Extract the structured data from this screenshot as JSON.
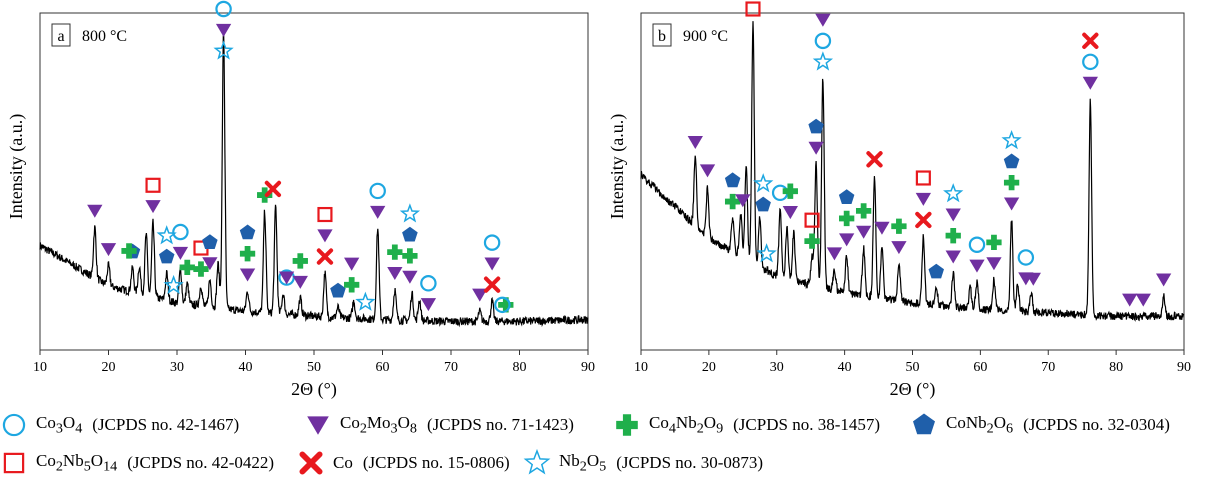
{
  "figure": {
    "legend": [
      {
        "symbol": "circle",
        "color": "#1EA7E1",
        "formula_html": "Co<sub>3</sub>O<sub>4</sub>",
        "formula": "Co3O4",
        "ref": "(JCPDS no. 42-1467)"
      },
      {
        "symbol": "triangle",
        "color": "#7030A0",
        "formula_html": "Co<sub>2</sub>Mo<sub>3</sub>O<sub>8</sub>",
        "formula": "Co2Mo3O8",
        "ref": "(JCPDS no. 71-1423)"
      },
      {
        "symbol": "plus",
        "color": "#1FAF4B",
        "formula_html": "Co<sub>4</sub>Nb<sub>2</sub>O<sub>9</sub>",
        "formula": "Co4Nb2O9",
        "ref": "(JCPDS no. 38-1457)"
      },
      {
        "symbol": "pentagon",
        "color": "#1F5FAA",
        "formula_html": "CoNb<sub>2</sub>O<sub>6</sub>",
        "formula": "CoNb2O6",
        "ref": "(JCPDS no. 32-0304)"
      },
      {
        "symbol": "square",
        "color": "#E8191E",
        "formula_html": "Co<sub>2</sub>Nb<sub>5</sub>O<sub>14</sub>",
        "formula": "Co2Nb5O14",
        "ref": "(JCPDS no. 42-0422)"
      },
      {
        "symbol": "cross",
        "color": "#E8191E",
        "formula_html": "Co",
        "formula": "Co",
        "ref": "(JCPDS no. 15-0806)"
      },
      {
        "symbol": "star",
        "color": "#1EA7E1",
        "formula_html": "Nb<sub>2</sub>O<sub>5</sub>",
        "formula": "Nb2O5",
        "ref": "(JCPDS no. 30-0873)"
      }
    ]
  },
  "chart_data": [
    {
      "type": "line",
      "panel_label": "a",
      "temperature": "800 °C",
      "xlabel": "2Θ (°)",
      "ylabel": "Intensity (a.u.)",
      "xlim": [
        10,
        90
      ],
      "xticks": [
        10,
        20,
        30,
        40,
        50,
        60,
        70,
        80,
        90
      ],
      "ylim": [
        0,
        100
      ],
      "baseline": {
        "x": [
          10,
          20,
          30,
          40,
          50,
          60,
          70,
          80,
          90
        ],
        "y": [
          31,
          19,
          14,
          11.5,
          10,
          9,
          8.5,
          8.5,
          9
        ]
      },
      "peaks": [
        {
          "x": 18.0,
          "h": 15
        },
        {
          "x": 20.0,
          "h": 6
        },
        {
          "x": 23.5,
          "h": 7
        },
        {
          "x": 24.5,
          "h": 8
        },
        {
          "x": 25.5,
          "h": 18
        },
        {
          "x": 26.5,
          "h": 22
        },
        {
          "x": 28.5,
          "h": 8
        },
        {
          "x": 30.5,
          "h": 10
        },
        {
          "x": 31.5,
          "h": 6
        },
        {
          "x": 33.5,
          "h": 6
        },
        {
          "x": 34.8,
          "h": 8
        },
        {
          "x": 36.0,
          "h": 13
        },
        {
          "x": 36.8,
          "h": 82
        },
        {
          "x": 40.3,
          "h": 6
        },
        {
          "x": 42.8,
          "h": 30
        },
        {
          "x": 44.4,
          "h": 32
        },
        {
          "x": 45.5,
          "h": 6
        },
        {
          "x": 48.0,
          "h": 5
        },
        {
          "x": 51.6,
          "h": 13
        },
        {
          "x": 53.5,
          "h": 3
        },
        {
          "x": 55.8,
          "h": 5
        },
        {
          "x": 59.3,
          "h": 27
        },
        {
          "x": 61.8,
          "h": 9
        },
        {
          "x": 64.3,
          "h": 8
        },
        {
          "x": 65.4,
          "h": 6
        },
        {
          "x": 74.2,
          "h": 3
        },
        {
          "x": 76.0,
          "h": 6
        }
      ],
      "markers": [
        {
          "x": 18.0,
          "stack": [
            "triangle"
          ]
        },
        {
          "x": 20.0,
          "stack": [
            "triangle"
          ]
        },
        {
          "x": 23.5,
          "stack": [
            "pentagon"
          ]
        },
        {
          "x": 23.0,
          "stack": [
            "plus"
          ]
        },
        {
          "x": 26.5,
          "stack": [
            "square",
            "triangle"
          ]
        },
        {
          "x": 28.5,
          "stack": [
            "star",
            "pentagon"
          ]
        },
        {
          "x": 29.5,
          "stack": [
            "star"
          ]
        },
        {
          "x": 30.5,
          "stack": [
            "circle",
            "triangle"
          ]
        },
        {
          "x": 31.5,
          "stack": [
            "plus"
          ]
        },
        {
          "x": 33.5,
          "stack": [
            "square",
            "plus"
          ]
        },
        {
          "x": 34.8,
          "stack": [
            "pentagon",
            "triangle"
          ]
        },
        {
          "x": 36.8,
          "stack": [
            "circle",
            "triangle",
            "star"
          ]
        },
        {
          "x": 40.3,
          "stack": [
            "pentagon",
            "plus",
            "triangle"
          ]
        },
        {
          "x": 42.8,
          "stack": [
            "plus"
          ]
        },
        {
          "x": 44.0,
          "stack": [
            "cross"
          ]
        },
        {
          "x": 46.0,
          "stack": [
            "circle"
          ]
        },
        {
          "x": 46.0,
          "stack": [
            "triangle"
          ]
        },
        {
          "x": 48.0,
          "stack": [
            "plus",
            "triangle"
          ]
        },
        {
          "x": 51.6,
          "stack": [
            "square",
            "triangle",
            "cross"
          ]
        },
        {
          "x": 53.5,
          "stack": [
            "pentagon"
          ]
        },
        {
          "x": 55.5,
          "stack": [
            "triangle",
            "plus"
          ]
        },
        {
          "x": 57.5,
          "stack": [
            "star"
          ]
        },
        {
          "x": 59.3,
          "stack": [
            "circle",
            "triangle"
          ]
        },
        {
          "x": 61.8,
          "stack": [
            "plus",
            "triangle"
          ]
        },
        {
          "x": 64.0,
          "stack": [
            "star",
            "pentagon",
            "plus",
            "triangle"
          ]
        },
        {
          "x": 66.7,
          "stack": [
            "circle",
            "triangle"
          ]
        },
        {
          "x": 74.2,
          "stack": [
            "triangle"
          ]
        },
        {
          "x": 76.0,
          "stack": [
            "circle",
            "triangle",
            "cross"
          ]
        },
        {
          "x": 78.0,
          "stack": [
            "plus"
          ]
        },
        {
          "x": 77.5,
          "stack": [
            "circle"
          ]
        }
      ]
    },
    {
      "type": "line",
      "panel_label": "b",
      "temperature": "900 °C",
      "xlabel": "2Θ (°)",
      "ylabel": "Intensity (a.u.)",
      "xlim": [
        10,
        90
      ],
      "xticks": [
        10,
        20,
        30,
        40,
        50,
        60,
        70,
        80,
        90
      ],
      "ylim": [
        0,
        100
      ],
      "baseline": {
        "x": [
          10,
          20,
          30,
          40,
          50,
          60,
          70,
          80,
          90
        ],
        "y": [
          52,
          33,
          22,
          17,
          14,
          12,
          11,
          10,
          10
        ]
      },
      "peaks": [
        {
          "x": 18.0,
          "h": 20
        },
        {
          "x": 19.8,
          "h": 15
        },
        {
          "x": 23.5,
          "h": 10
        },
        {
          "x": 24.7,
          "h": 12
        },
        {
          "x": 25.5,
          "h": 27
        },
        {
          "x": 26.5,
          "h": 71
        },
        {
          "x": 27.5,
          "h": 14
        },
        {
          "x": 30.5,
          "h": 20
        },
        {
          "x": 31.5,
          "h": 15
        },
        {
          "x": 32.5,
          "h": 14
        },
        {
          "x": 35.2,
          "h": 8
        },
        {
          "x": 35.8,
          "h": 36
        },
        {
          "x": 36.8,
          "h": 62
        },
        {
          "x": 38.5,
          "h": 6
        },
        {
          "x": 40.3,
          "h": 11
        },
        {
          "x": 42.8,
          "h": 14
        },
        {
          "x": 44.4,
          "h": 36
        },
        {
          "x": 45.5,
          "h": 16
        },
        {
          "x": 48.0,
          "h": 11
        },
        {
          "x": 51.6,
          "h": 20
        },
        {
          "x": 53.5,
          "h": 5
        },
        {
          "x": 56.0,
          "h": 10
        },
        {
          "x": 58.5,
          "h": 6
        },
        {
          "x": 59.5,
          "h": 8
        },
        {
          "x": 62.0,
          "h": 9
        },
        {
          "x": 64.6,
          "h": 27
        },
        {
          "x": 65.5,
          "h": 8
        },
        {
          "x": 67.5,
          "h": 5
        },
        {
          "x": 76.2,
          "h": 64
        },
        {
          "x": 87.0,
          "h": 6
        }
      ],
      "markers": [
        {
          "x": 18.0,
          "stack": [
            "triangle"
          ]
        },
        {
          "x": 19.8,
          "stack": [
            "triangle"
          ]
        },
        {
          "x": 23.5,
          "stack": [
            "pentagon",
            "plus"
          ]
        },
        {
          "x": 25.0,
          "stack": [
            "triangle"
          ]
        },
        {
          "x": 26.5,
          "stack": [
            "square"
          ]
        },
        {
          "x": 28.0,
          "stack": [
            "star",
            "pentagon"
          ]
        },
        {
          "x": 28.5,
          "stack": [
            "star"
          ]
        },
        {
          "x": 30.5,
          "stack": [
            "circle"
          ]
        },
        {
          "x": 32.0,
          "stack": [
            "plus",
            "triangle"
          ]
        },
        {
          "x": 35.2,
          "stack": [
            "square",
            "plus"
          ]
        },
        {
          "x": 35.8,
          "stack": [
            "pentagon",
            "triangle"
          ]
        },
        {
          "x": 36.8,
          "stack": [
            "triangle",
            "circle",
            "star"
          ]
        },
        {
          "x": 38.5,
          "stack": [
            "triangle"
          ]
        },
        {
          "x": 40.3,
          "stack": [
            "pentagon",
            "plus",
            "triangle"
          ]
        },
        {
          "x": 42.8,
          "stack": [
            "plus",
            "triangle"
          ]
        },
        {
          "x": 44.4,
          "stack": [
            "cross"
          ]
        },
        {
          "x": 45.5,
          "stack": [
            "triangle"
          ]
        },
        {
          "x": 48.0,
          "stack": [
            "plus",
            "triangle"
          ]
        },
        {
          "x": 51.6,
          "stack": [
            "square",
            "triangle",
            "cross"
          ]
        },
        {
          "x": 53.5,
          "stack": [
            "pentagon"
          ]
        },
        {
          "x": 56.0,
          "stack": [
            "star",
            "triangle",
            "plus",
            "triangle"
          ]
        },
        {
          "x": 59.5,
          "stack": [
            "circle",
            "triangle"
          ]
        },
        {
          "x": 62.0,
          "stack": [
            "plus",
            "triangle"
          ]
        },
        {
          "x": 64.6,
          "stack": [
            "star",
            "pentagon",
            "plus",
            "triangle"
          ]
        },
        {
          "x": 66.7,
          "stack": [
            "circle",
            "triangle"
          ]
        },
        {
          "x": 67.8,
          "stack": [
            "triangle"
          ]
        },
        {
          "x": 76.2,
          "stack": [
            "cross",
            "circle",
            "triangle"
          ]
        },
        {
          "x": 82.0,
          "stack": [
            "triangle"
          ]
        },
        {
          "x": 84.0,
          "stack": [
            "triangle"
          ]
        },
        {
          "x": 87.0,
          "stack": [
            "triangle"
          ]
        }
      ]
    }
  ]
}
